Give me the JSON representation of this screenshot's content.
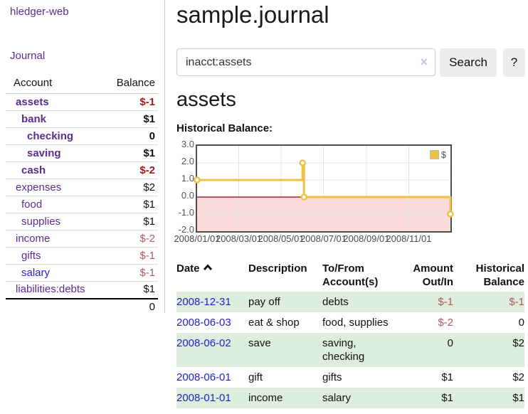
{
  "colors": {
    "link_purple": "#5c2d91",
    "link_blue": "#2424d6",
    "date_link_blue": "#2222cc",
    "negative_bold_red": "#9b1b1b",
    "negative_red": "#b05a62",
    "series_gold": "#edc240",
    "negative_region_pink": "#fbdada",
    "zero_line_red": "#8b0000",
    "row_stripe_green": "#ddeedd",
    "button_gray": "#ececec"
  },
  "sidebar": {
    "app_title": "hledger-web",
    "journal_label": "Journal",
    "accounts": {
      "header_account": "Account",
      "header_balance": "Balance",
      "rows": [
        {
          "name": "assets",
          "balance": "$-1",
          "depth": 0,
          "bold": true,
          "name_style": "purple",
          "balance_style": "neg"
        },
        {
          "name": "bank",
          "balance": "$1",
          "depth": 1,
          "bold": true,
          "name_style": "purple",
          "balance_style": "pos"
        },
        {
          "name": "checking",
          "balance": "0",
          "depth": 2,
          "bold": true,
          "name_style": "purple",
          "balance_style": "pos"
        },
        {
          "name": "saving",
          "balance": "$1",
          "depth": 2,
          "bold": true,
          "name_style": "purple",
          "balance_style": "pos"
        },
        {
          "name": "cash",
          "balance": "$-2",
          "depth": 1,
          "bold": true,
          "name_style": "purple",
          "balance_style": "neg"
        },
        {
          "name": "expenses",
          "balance": "$2",
          "depth": 0,
          "bold": false,
          "name_style": "purple",
          "balance_style": "pos"
        },
        {
          "name": "food",
          "balance": "$1",
          "depth": 1,
          "bold": false,
          "name_style": "purple",
          "balance_style": "pos"
        },
        {
          "name": "supplies",
          "balance": "$1",
          "depth": 1,
          "bold": false,
          "name_style": "purple",
          "balance_style": "pos"
        },
        {
          "name": "income",
          "balance": "$-2",
          "depth": 0,
          "bold": false,
          "name_style": "purple",
          "balance_style": "neg"
        },
        {
          "name": "gifts",
          "balance": "$-1",
          "depth": 1,
          "bold": false,
          "name_style": "purple",
          "balance_style": "neg"
        },
        {
          "name": "salary",
          "balance": "$-1",
          "depth": 1,
          "bold": false,
          "name_style": "blue",
          "balance_style": "neg"
        },
        {
          "name": "liabilities:debts",
          "balance": "$1",
          "depth": 0,
          "bold": false,
          "name_style": "purple",
          "balance_style": "pos"
        }
      ],
      "total": "0"
    }
  },
  "main": {
    "title": "sample.journal",
    "search": {
      "value": "inacct:assets",
      "clear_icon": "×",
      "button_label": "Search",
      "help_label": "?"
    },
    "account_heading": "assets",
    "chart_label": "Historical Balance:"
  },
  "chart_data": {
    "type": "line",
    "step": true,
    "title": "Historical Balance",
    "legend": {
      "label": "$",
      "position": "top-right",
      "color": "#edc240"
    },
    "x_range": [
      "2008-01-01",
      "2008-12-31"
    ],
    "ylim": [
      -2.0,
      3.0
    ],
    "grid": true,
    "yticks": [
      {
        "label": "3.0",
        "value": 3
      },
      {
        "label": "2.0",
        "value": 2
      },
      {
        "label": "1.0",
        "value": 1
      },
      {
        "label": "0.0",
        "value": 0
      },
      {
        "label": "-1.0",
        "value": -1
      },
      {
        "label": "-2.0",
        "value": -2
      }
    ],
    "xticks": [
      {
        "label": "2008/01/01",
        "date": "2008-01-01"
      },
      {
        "label": "2008/03/01",
        "date": "2008-03-01"
      },
      {
        "label": "2008/05/01",
        "date": "2008-05-01"
      },
      {
        "label": "2008/07/01",
        "date": "2008-07-01"
      },
      {
        "label": "2008/09/01",
        "date": "2008-09-01"
      },
      {
        "label": "2008/11/01",
        "date": "2008-11-01"
      }
    ],
    "series": [
      {
        "name": "$",
        "color": "#edc240",
        "points": [
          {
            "date": "2008-01-01",
            "value": 1
          },
          {
            "date": "2008-06-01",
            "value": 2
          },
          {
            "date": "2008-06-03",
            "value": 0
          },
          {
            "date": "2008-12-31",
            "value": -1
          }
        ]
      }
    ],
    "negative_region": {
      "fill": "#fbdada",
      "zero_line_color": "#8b0000"
    }
  },
  "register": {
    "headers": {
      "date": "Date",
      "sort_icon": "chevron-up",
      "description": "Description",
      "accounts": "To/From Account(s)",
      "amount": "Amount Out/In",
      "balance": "Historical Balance"
    },
    "rows": [
      {
        "date": "2008-12-31",
        "description": "pay off",
        "accounts": "debts",
        "amount": "$-1",
        "amount_style": "neg",
        "balance": "$-1",
        "balance_style": "neg"
      },
      {
        "date": "2008-06-03",
        "description": "eat & shop",
        "accounts": "food, supplies",
        "amount": "$-2",
        "amount_style": "neg",
        "balance": "0",
        "balance_style": "pos"
      },
      {
        "date": "2008-06-02",
        "description": "save",
        "accounts": "saving, checking",
        "amount": "0",
        "amount_style": "pos",
        "balance": "$2",
        "balance_style": "pos"
      },
      {
        "date": "2008-06-01",
        "description": "gift",
        "accounts": "gifts",
        "amount": "$1",
        "amount_style": "pos",
        "balance": "$2",
        "balance_style": "pos"
      },
      {
        "date": "2008-01-01",
        "description": "income",
        "accounts": "salary",
        "amount": "$1",
        "amount_style": "pos",
        "balance": "$1",
        "balance_style": "pos"
      }
    ]
  }
}
